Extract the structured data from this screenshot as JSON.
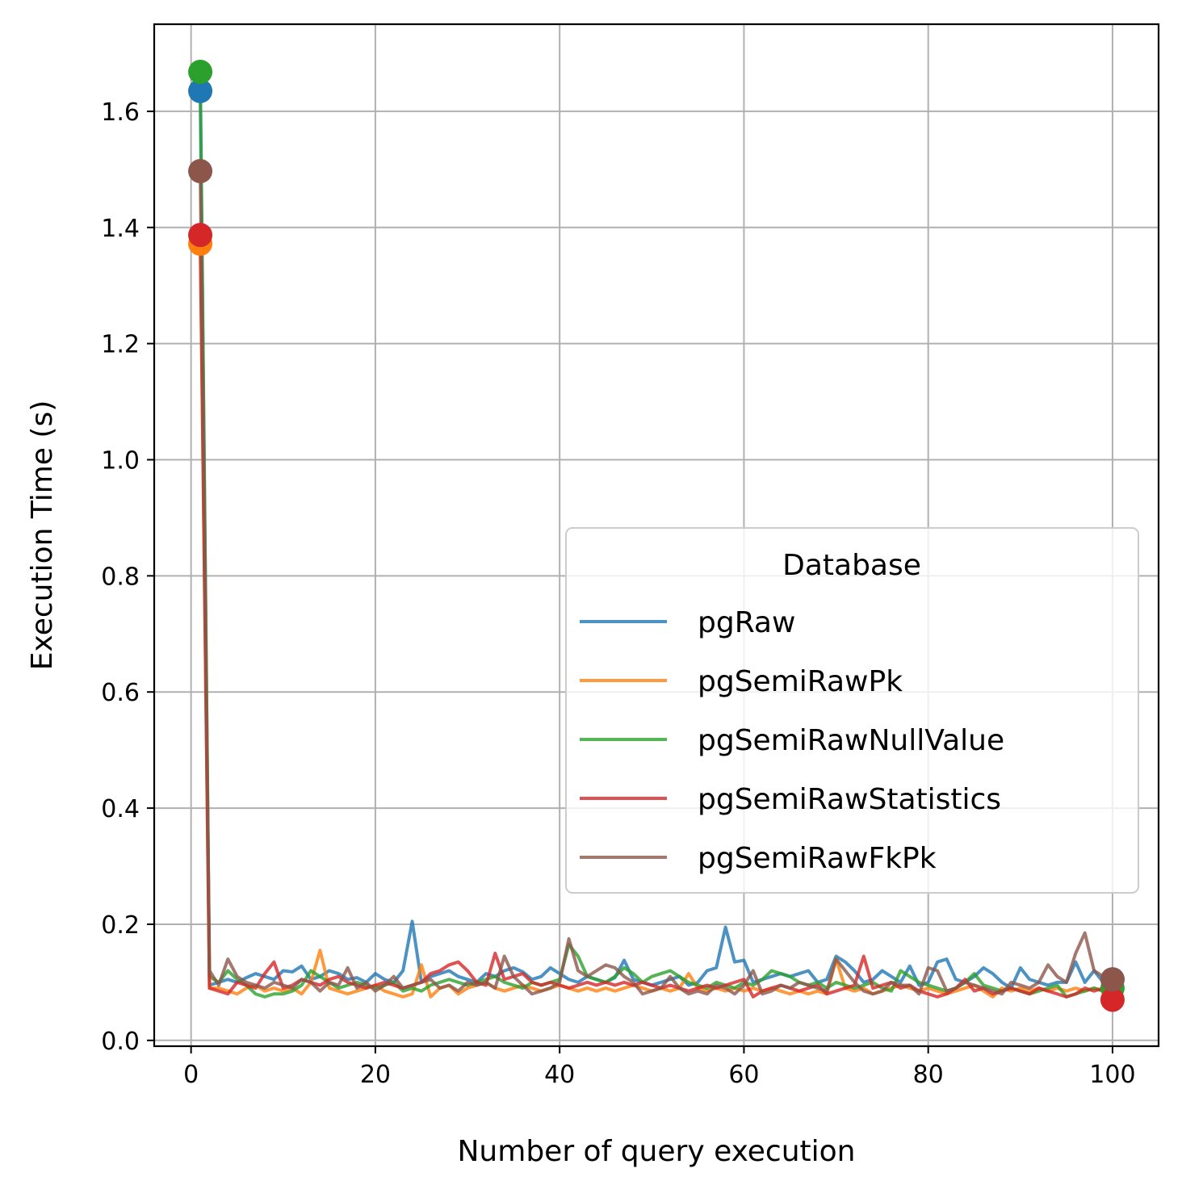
{
  "chart_data": {
    "type": "line",
    "xlabel": "Number of query execution",
    "ylabel": "Execution Time (s)",
    "xlim": [
      -4,
      105
    ],
    "ylim": [
      -0.01,
      1.75
    ],
    "xticks": [
      0,
      20,
      40,
      60,
      80,
      100
    ],
    "xtick_labels": [
      "0",
      "20",
      "40",
      "60",
      "80",
      "100"
    ],
    "yticks": [
      0.0,
      0.2,
      0.4,
      0.6,
      0.8,
      1.0,
      1.2,
      1.4,
      1.6
    ],
    "ytick_labels": [
      "0.0",
      "0.2",
      "0.4",
      "0.6",
      "0.8",
      "1.0",
      "1.2",
      "1.4",
      "1.6"
    ],
    "grid": true,
    "legend": {
      "title": "Database",
      "placement": "center-right"
    },
    "x_start": 1,
    "series": [
      {
        "name": "pgRaw",
        "color": "#1f77b4",
        "values": [
          1.635,
          0.095,
          0.1,
          0.105,
          0.1,
          0.108,
          0.115,
          0.11,
          0.105,
          0.12,
          0.118,
          0.128,
          0.105,
          0.11,
          0.12,
          0.115,
          0.105,
          0.108,
          0.1,
          0.115,
          0.105,
          0.1,
          0.12,
          0.205,
          0.1,
          0.11,
          0.115,
          0.12,
          0.11,
          0.105,
          0.1,
          0.115,
          0.11,
          0.12,
          0.125,
          0.118,
          0.105,
          0.11,
          0.125,
          0.115,
          0.105,
          0.1,
          0.11,
          0.105,
          0.1,
          0.108,
          0.138,
          0.105,
          0.1,
          0.095,
          0.1,
          0.105,
          0.11,
          0.095,
          0.1,
          0.12,
          0.125,
          0.195,
          0.135,
          0.138,
          0.1,
          0.105,
          0.11,
          0.115,
          0.11,
          0.115,
          0.12,
          0.1,
          0.105,
          0.145,
          0.135,
          0.12,
          0.1,
          0.105,
          0.12,
          0.11,
          0.1,
          0.128,
          0.095,
          0.1,
          0.135,
          0.14,
          0.105,
          0.1,
          0.11,
          0.125,
          0.115,
          0.1,
          0.09,
          0.125,
          0.105,
          0.1,
          0.095,
          0.1,
          0.1,
          0.135,
          0.1,
          0.12,
          0.1,
          0.105
        ]
      },
      {
        "name": "pgSemiRawPk",
        "color": "#ff7f0e",
        "values": [
          1.372,
          0.09,
          0.09,
          0.085,
          0.08,
          0.09,
          0.095,
          0.085,
          0.09,
          0.085,
          0.09,
          0.08,
          0.1,
          0.155,
          0.09,
          0.085,
          0.08,
          0.085,
          0.09,
          0.095,
          0.085,
          0.08,
          0.075,
          0.08,
          0.13,
          0.075,
          0.09,
          0.095,
          0.08,
          0.09,
          0.095,
          0.1,
          0.09,
          0.085,
          0.09,
          0.095,
          0.09,
          0.085,
          0.09,
          0.095,
          0.09,
          0.085,
          0.09,
          0.085,
          0.09,
          0.085,
          0.09,
          0.095,
          0.09,
          0.085,
          0.09,
          0.085,
          0.09,
          0.115,
          0.09,
          0.085,
          0.09,
          0.085,
          0.09,
          0.085,
          0.09,
          0.085,
          0.09,
          0.085,
          0.08,
          0.085,
          0.08,
          0.085,
          0.08,
          0.14,
          0.09,
          0.085,
          0.09,
          0.08,
          0.085,
          0.09,
          0.095,
          0.09,
          0.085,
          0.09,
          0.085,
          0.08,
          0.085,
          0.09,
          0.095,
          0.085,
          0.075,
          0.09,
          0.085,
          0.09,
          0.085,
          0.09,
          0.085,
          0.09,
          0.085,
          0.09,
          0.085,
          0.09,
          0.085,
          0.09
        ]
      },
      {
        "name": "pgSemiRawNullValue",
        "color": "#2ca02c",
        "values": [
          1.668,
          0.11,
          0.1,
          0.12,
          0.105,
          0.095,
          0.08,
          0.075,
          0.08,
          0.08,
          0.085,
          0.095,
          0.12,
          0.11,
          0.1,
          0.09,
          0.095,
          0.1,
          0.095,
          0.09,
          0.095,
          0.1,
          0.085,
          0.09,
          0.085,
          0.095,
          0.1,
          0.105,
          0.1,
          0.095,
          0.1,
          0.105,
          0.11,
          0.1,
          0.095,
          0.09,
          0.1,
          0.095,
          0.1,
          0.105,
          0.165,
          0.145,
          0.11,
          0.105,
          0.1,
          0.11,
          0.125,
          0.115,
          0.1,
          0.11,
          0.115,
          0.12,
          0.11,
          0.1,
          0.095,
          0.09,
          0.1,
          0.095,
          0.09,
          0.1,
          0.095,
          0.105,
          0.12,
          0.115,
          0.11,
          0.1,
          0.095,
          0.1,
          0.09,
          0.1,
          0.095,
          0.09,
          0.095,
          0.1,
          0.09,
          0.085,
          0.12,
          0.11,
          0.1,
          0.095,
          0.09,
          0.085,
          0.09,
          0.1,
          0.115,
          0.095,
          0.09,
          0.085,
          0.09,
          0.085,
          0.08,
          0.085,
          0.09,
          0.095,
          0.075,
          0.08,
          0.085,
          0.09,
          0.085,
          0.09
        ]
      },
      {
        "name": "pgSemiRawStatistics",
        "color": "#d62728",
        "values": [
          1.387,
          0.09,
          0.085,
          0.08,
          0.1,
          0.095,
          0.09,
          0.115,
          0.135,
          0.09,
          0.095,
          0.105,
          0.1,
          0.095,
          0.105,
          0.11,
          0.1,
          0.095,
          0.09,
          0.095,
          0.1,
          0.095,
          0.09,
          0.095,
          0.1,
          0.115,
          0.12,
          0.13,
          0.135,
          0.12,
          0.1,
          0.095,
          0.15,
          0.105,
          0.11,
          0.115,
          0.1,
          0.095,
          0.1,
          0.095,
          0.09,
          0.095,
          0.1,
          0.095,
          0.1,
          0.095,
          0.1,
          0.095,
          0.1,
          0.095,
          0.09,
          0.095,
          0.09,
          0.085,
          0.09,
          0.095,
          0.09,
          0.095,
          0.1,
          0.105,
          0.075,
          0.085,
          0.09,
          0.095,
          0.09,
          0.085,
          0.09,
          0.095,
          0.08,
          0.085,
          0.09,
          0.095,
          0.145,
          0.09,
          0.095,
          0.1,
          0.09,
          0.095,
          0.085,
          0.08,
          0.075,
          0.08,
          0.09,
          0.105,
          0.085,
          0.09,
          0.08,
          0.085,
          0.09,
          0.085,
          0.08,
          0.09,
          0.085,
          0.08,
          0.075,
          0.08,
          0.09,
          0.085,
          0.09,
          0.07
        ]
      },
      {
        "name": "pgSemiRawFkPk",
        "color": "#8c564b",
        "values": [
          1.497,
          0.12,
          0.095,
          0.14,
          0.11,
          0.1,
          0.095,
          0.09,
          0.1,
          0.095,
          0.09,
          0.105,
          0.1,
          0.085,
          0.1,
          0.095,
          0.125,
          0.09,
          0.1,
          0.085,
          0.095,
          0.11,
          0.09,
          0.095,
          0.1,
          0.105,
          0.09,
          0.095,
          0.085,
          0.1,
          0.095,
          0.1,
          0.09,
          0.145,
          0.11,
          0.095,
          0.08,
          0.085,
          0.09,
          0.1,
          0.175,
          0.12,
          0.11,
          0.12,
          0.13,
          0.125,
          0.11,
          0.1,
          0.08,
          0.085,
          0.09,
          0.11,
          0.09,
          0.08,
          0.085,
          0.08,
          0.095,
          0.09,
          0.08,
          0.095,
          0.12,
          0.08,
          0.085,
          0.095,
          0.09,
          0.1,
          0.095,
          0.09,
          0.085,
          0.14,
          0.12,
          0.1,
          0.085,
          0.08,
          0.085,
          0.1,
          0.095,
          0.095,
          0.08,
          0.125,
          0.12,
          0.085,
          0.09,
          0.1,
          0.095,
          0.09,
          0.085,
          0.08,
          0.1,
          0.095,
          0.09,
          0.1,
          0.13,
          0.11,
          0.1,
          0.15,
          0.185,
          0.12,
          0.11,
          0.105
        ]
      }
    ],
    "first_markers": [
      {
        "series": "pgSemiRawPk",
        "x": 1,
        "y": 1.372
      },
      {
        "series": "pgSemiRawStatistics",
        "x": 1,
        "y": 1.387
      },
      {
        "series": "pgRaw",
        "x": 1,
        "y": 1.635
      },
      {
        "series": "pgSemiRawNullValue",
        "x": 1,
        "y": 1.668
      },
      {
        "series": "pgSemiRawFkPk",
        "x": 1,
        "y": 1.497
      }
    ],
    "last_markers": [
      {
        "series": "pgSemiRawNullValue",
        "x": 100,
        "y": 0.09
      },
      {
        "series": "pgSemiRawStatistics",
        "x": 100,
        "y": 0.07
      },
      {
        "series": "pgRaw",
        "x": 100,
        "y": 0.105
      },
      {
        "series": "pgSemiRawFkPk",
        "x": 100,
        "y": 0.105
      }
    ]
  }
}
